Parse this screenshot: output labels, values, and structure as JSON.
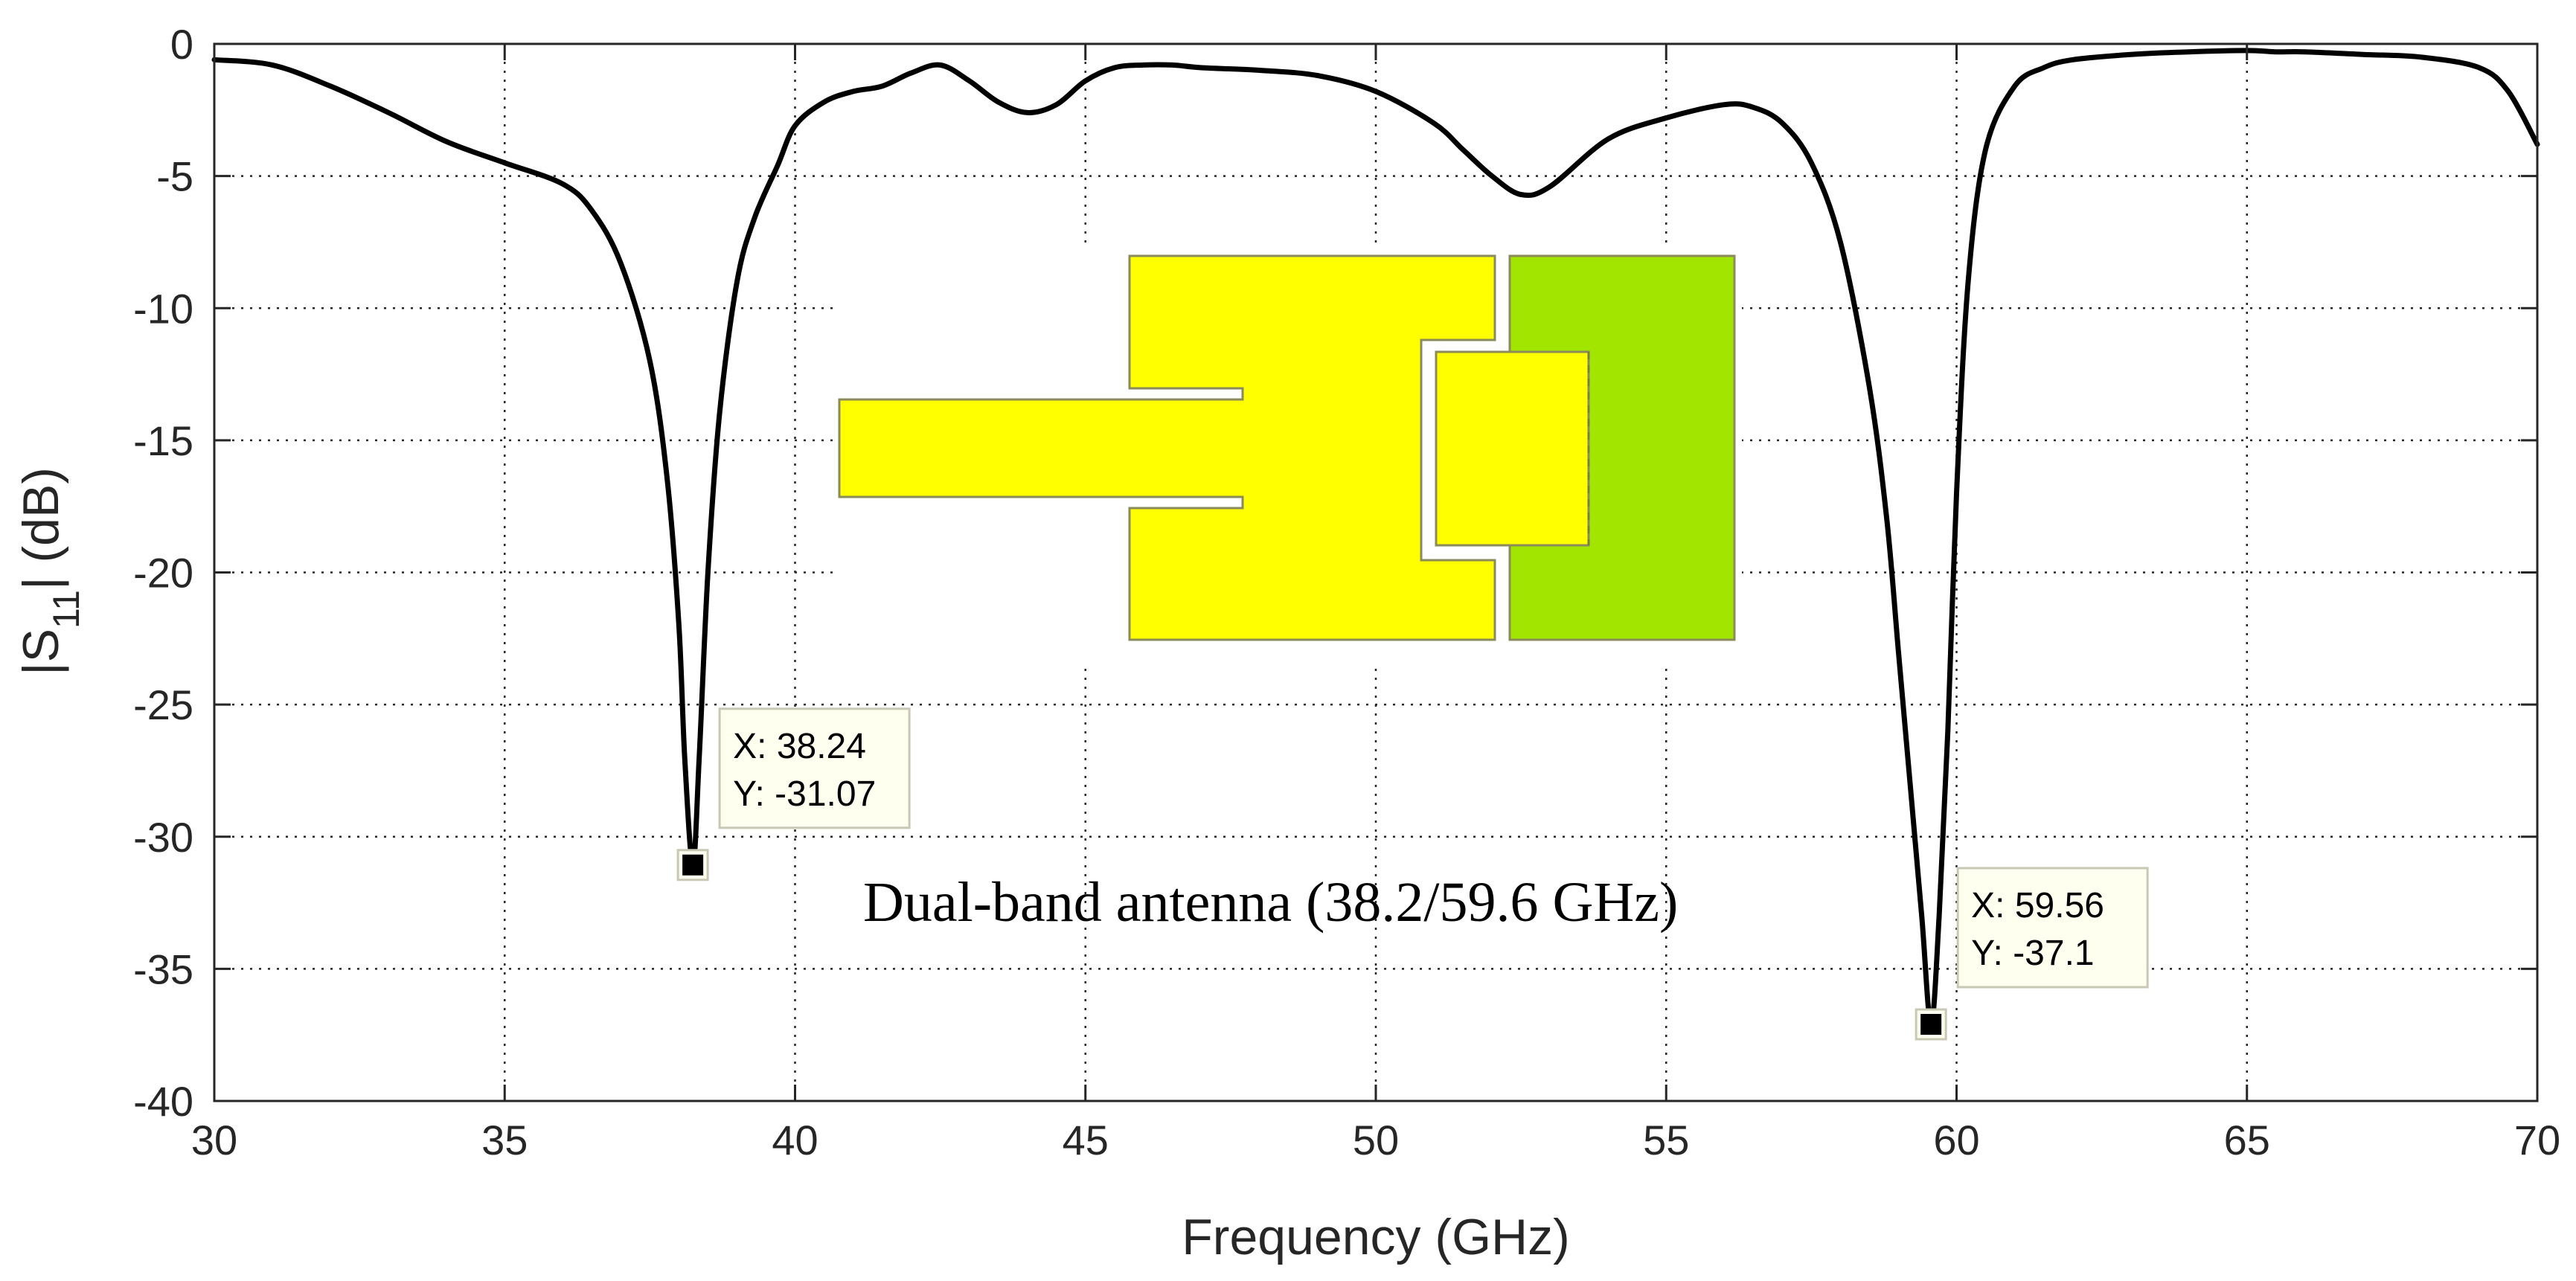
{
  "chart_data": {
    "type": "line",
    "title": "",
    "xlabel": "Frequency (GHz)",
    "ylabel_parts": {
      "prefix": "|S",
      "subscript": "11",
      "suffix": "| (dB)"
    },
    "xlim": [
      30,
      70
    ],
    "ylim": [
      -40,
      0
    ],
    "xticks": [
      "30",
      "35",
      "40",
      "45",
      "50",
      "55",
      "60",
      "65",
      "70"
    ],
    "yticks": [
      "0",
      "-5",
      "-10",
      "-15",
      "-20",
      "-25",
      "-30",
      "-35",
      "-40"
    ],
    "grid": true,
    "line_color": "#000000",
    "series": [
      {
        "x": [
          30,
          31,
          32,
          33,
          34,
          35,
          36,
          36.5,
          37,
          37.5,
          37.8,
          38,
          38.1,
          38.24,
          38.35,
          38.5,
          38.7,
          39,
          39.3,
          39.7,
          40,
          40.5,
          41,
          41.5,
          42,
          42.5,
          43,
          43.5,
          44,
          44.5,
          45,
          45.5,
          46,
          46.5,
          47,
          48,
          49,
          50,
          51,
          51.5,
          52,
          52.5,
          53,
          54,
          55,
          56,
          56.5,
          57,
          57.5,
          58,
          58.5,
          58.8,
          59,
          59.2,
          59.4,
          59.56,
          59.7,
          59.85,
          60,
          60.2,
          60.5,
          61,
          61.5,
          62,
          63,
          64,
          65,
          65.5,
          66,
          67,
          68,
          69,
          69.5,
          70
        ],
        "y": [
          -0.6,
          -0.8,
          -1.6,
          -2.6,
          -3.7,
          -4.5,
          -5.3,
          -6.3,
          -8.3,
          -12,
          -16.5,
          -22,
          -27,
          -31.07,
          -27,
          -20,
          -14,
          -9,
          -6.6,
          -4.6,
          -3.1,
          -2.2,
          -1.8,
          -1.6,
          -1.1,
          -0.8,
          -1.4,
          -2.2,
          -2.6,
          -2.3,
          -1.4,
          -0.9,
          -0.8,
          -0.8,
          -0.9,
          -1,
          -1.2,
          -1.8,
          -3,
          -4,
          -5,
          -5.7,
          -5.4,
          -3.6,
          -2.8,
          -2.3,
          -2.4,
          -3,
          -4.5,
          -7.5,
          -13,
          -18,
          -23,
          -28,
          -33,
          -37.1,
          -33,
          -26,
          -17,
          -9,
          -4,
          -1.6,
          -0.9,
          -0.6,
          -0.4,
          -0.3,
          -0.25,
          -0.3,
          -0.3,
          -0.4,
          -0.5,
          -0.9,
          -1.8,
          -3.8
        ]
      }
    ],
    "annotations": [
      {
        "x": 38.24,
        "y": -31.07,
        "label_x": "X: 38.24",
        "label_y": "Y: -31.07"
      },
      {
        "x": 59.56,
        "y": -37.1,
        "label_x": "X: 59.56",
        "label_y": "Y: -37.1"
      }
    ],
    "inset": {
      "caption": "Dual-band antenna (38.2/59.6 GHz)",
      "colors": {
        "yellow": "#ffff00",
        "green": "#a2e600",
        "outline": "#8a8a5a"
      }
    }
  }
}
